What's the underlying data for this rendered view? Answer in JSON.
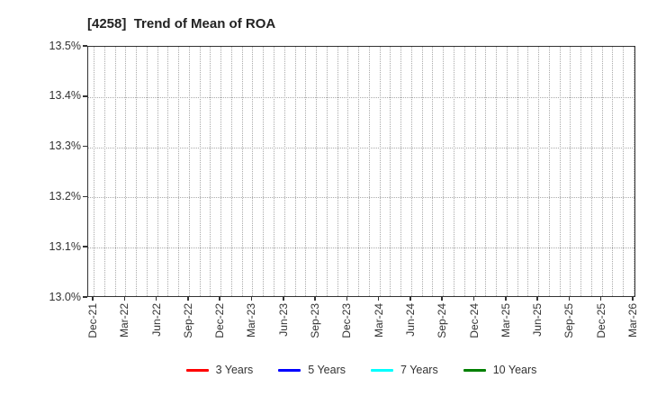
{
  "chart": {
    "title": "[4258]  Trend of Mean of ROA",
    "y_axis": {
      "tick_labels": [
        "13.5%",
        "13.4%",
        "13.3%",
        "13.2%",
        "13.1%",
        "13.0%"
      ]
    },
    "x_axis": {
      "tick_labels": [
        "Dec-21",
        "Mar-22",
        "Jun-22",
        "Sep-22",
        "Dec-22",
        "Mar-23",
        "Jun-23",
        "Sep-23",
        "Dec-23",
        "Mar-24",
        "Jun-24",
        "Sep-24",
        "Dec-24",
        "Mar-25",
        "Jun-25",
        "Sep-25",
        "Dec-25",
        "Mar-26"
      ]
    },
    "legend": [
      {
        "label": "3 Years",
        "color": "#ff0000"
      },
      {
        "label": "5 Years",
        "color": "#0000ff"
      },
      {
        "label": "7 Years",
        "color": "#00ffff"
      },
      {
        "label": "10 Years",
        "color": "#008000"
      }
    ]
  },
  "chart_data": {
    "type": "line",
    "title": "[4258]  Trend of Mean of ROA",
    "categories": [
      "Dec-21",
      "Mar-22",
      "Jun-22",
      "Sep-22",
      "Dec-22",
      "Mar-23",
      "Jun-23",
      "Sep-23",
      "Dec-23",
      "Mar-24",
      "Jun-24",
      "Sep-24",
      "Dec-24",
      "Mar-25",
      "Jun-25",
      "Sep-25",
      "Dec-25",
      "Mar-26"
    ],
    "series": [
      {
        "name": "3 Years",
        "color": "#ff0000",
        "values": []
      },
      {
        "name": "5 Years",
        "color": "#0000ff",
        "values": []
      },
      {
        "name": "7 Years",
        "color": "#00ffff",
        "values": []
      },
      {
        "name": "10 Years",
        "color": "#008000",
        "values": []
      }
    ],
    "xlabel": "",
    "ylabel": "",
    "ylim": [
      13.0,
      13.5
    ],
    "y_tick_step": 0.1,
    "y_tick_format": "percent",
    "grid": true,
    "grid_style": "dotted",
    "vertical_gridlines": "monthly",
    "legend_position": "bottom",
    "note": "Plot area is empty: no data points are drawn for any series."
  }
}
